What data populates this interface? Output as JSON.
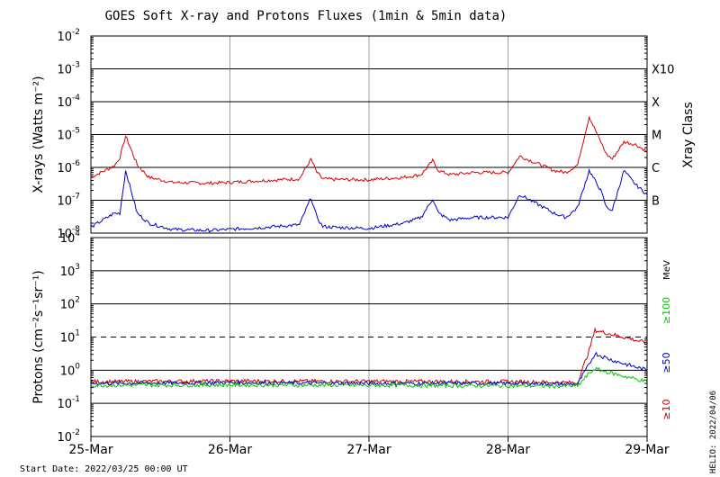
{
  "chart_data": {
    "type": "line",
    "title": "GOES Soft X-ray and Protons Fluxes   (1min & 5min data)",
    "x_ticks": [
      "25-Mar",
      "26-Mar",
      "27-Mar",
      "28-Mar",
      "29-Mar"
    ],
    "xlim": [
      "2022-03-25 00:00",
      "2022-03-29 00:00"
    ],
    "start_label": "Start Date: 2022/03/25 00:00 UT",
    "side_label": "HELIO: 2022/04/06",
    "grid": true,
    "panels": [
      {
        "id": "xray",
        "ylabel": "X-rays (Watts m⁻²)",
        "yscale": "log",
        "ylim": [
          1e-08,
          0.01
        ],
        "y_ticks": [
          {
            "base": "10",
            "exp": "-8"
          },
          {
            "base": "10",
            "exp": "-7"
          },
          {
            "base": "10",
            "exp": "-6"
          },
          {
            "base": "10",
            "exp": "-5"
          },
          {
            "base": "10",
            "exp": "-4"
          },
          {
            "base": "10",
            "exp": "-3"
          },
          {
            "base": "10",
            "exp": "-2"
          }
        ],
        "right_axis_title": "Xray Class",
        "class_labels": [
          "B",
          "C",
          "M",
          "X",
          "X10"
        ],
        "series": [
          {
            "color": "#d80000",
            "x": [
              "2022-03-25 00:00",
              "2022-03-25 04:00",
              "2022-03-25 05:00",
              "2022-03-25 06:00",
              "2022-03-25 08:00",
              "2022-03-25 10:00",
              "2022-03-25 14:00",
              "2022-03-25 20:00",
              "2022-03-26 00:00",
              "2022-03-26 06:00",
              "2022-03-26 12:00",
              "2022-03-26 14:00",
              "2022-03-26 15:00",
              "2022-03-26 16:00",
              "2022-03-26 18:00",
              "2022-03-27 00:00",
              "2022-03-27 06:00",
              "2022-03-27 09:00",
              "2022-03-27 11:00",
              "2022-03-27 12:00",
              "2022-03-27 14:00",
              "2022-03-27 18:00",
              "2022-03-28 00:00",
              "2022-03-28 02:00",
              "2022-03-28 08:00",
              "2022-03-28 10:00",
              "2022-03-28 12:00",
              "2022-03-28 14:00",
              "2022-03-28 16:00",
              "2022-03-28 17:00",
              "2022-03-28 18:00",
              "2022-03-28 20:00",
              "2022-03-28 22:00",
              "2022-03-29 00:00"
            ],
            "values": [
              5e-07,
              1.1e-06,
              2e-06,
              9e-06,
              1.2e-06,
              5e-07,
              3.5e-07,
              3.3e-07,
              3.5e-07,
              4e-07,
              4.5e-07,
              1.8e-06,
              7e-07,
              4.5e-07,
              4.3e-07,
              4.2e-07,
              5e-07,
              6e-07,
              1.6e-06,
              8e-07,
              6e-07,
              7e-07,
              7e-07,
              2.2e-06,
              8e-07,
              7e-07,
              1.2e-06,
              3.5e-05,
              6e-06,
              2.5e-06,
              1.8e-06,
              6e-06,
              5e-06,
              3e-06
            ]
          },
          {
            "color": "#0000c8",
            "x": [
              "2022-03-25 00:00",
              "2022-03-25 04:00",
              "2022-03-25 05:00",
              "2022-03-25 06:00",
              "2022-03-25 08:00",
              "2022-03-25 10:00",
              "2022-03-25 14:00",
              "2022-03-25 20:00",
              "2022-03-26 00:00",
              "2022-03-26 06:00",
              "2022-03-26 12:00",
              "2022-03-26 14:00",
              "2022-03-26 15:00",
              "2022-03-26 16:00",
              "2022-03-26 18:00",
              "2022-03-27 00:00",
              "2022-03-27 06:00",
              "2022-03-27 09:00",
              "2022-03-27 11:00",
              "2022-03-27 12:00",
              "2022-03-27 14:00",
              "2022-03-27 18:00",
              "2022-03-28 00:00",
              "2022-03-28 02:00",
              "2022-03-28 08:00",
              "2022-03-28 10:00",
              "2022-03-28 12:00",
              "2022-03-28 14:00",
              "2022-03-28 16:00",
              "2022-03-28 17:00",
              "2022-03-28 18:00",
              "2022-03-28 20:00",
              "2022-03-28 22:00",
              "2022-03-29 00:00"
            ],
            "values": [
              1.5e-08,
              4e-08,
              4e-08,
              8e-07,
              4e-08,
              2e-08,
              1.3e-08,
              1.2e-08,
              1.3e-08,
              1.5e-08,
              1.8e-08,
              1.2e-07,
              3e-08,
              1.6e-08,
              1.5e-08,
              1.4e-08,
              2e-08,
              3e-08,
              1.1e-07,
              4e-08,
              2.5e-08,
              3e-08,
              3e-08,
              1.5e-07,
              4e-08,
              3e-08,
              6e-08,
              8e-07,
              2e-07,
              6e-08,
              5e-08,
              8e-07,
              3e-07,
              1.5e-07
            ]
          }
        ]
      },
      {
        "id": "protons",
        "ylabel": "Protons (cm⁻²s⁻¹sr⁻¹)",
        "yscale": "log",
        "ylim": [
          0.01,
          10000
        ],
        "y_ticks": [
          {
            "base": "10",
            "exp": "-2"
          },
          {
            "base": "10",
            "exp": "-1"
          },
          {
            "base": "10",
            "exp": "0"
          },
          {
            "base": "10",
            "exp": "1"
          },
          {
            "base": "10",
            "exp": "2"
          },
          {
            "base": "10",
            "exp": "3"
          },
          {
            "base": "10",
            "exp": "4"
          }
        ],
        "threshold": 10,
        "right_unit": "MeV",
        "series": [
          {
            "name": "≥10",
            "color": "#c80000",
            "x": [
              "2022-03-25 00:00",
              "2022-03-26 00:00",
              "2022-03-27 00:00",
              "2022-03-28 00:00",
              "2022-03-28 12:00",
              "2022-03-28 14:00",
              "2022-03-28 15:00",
              "2022-03-28 18:00",
              "2022-03-28 21:00",
              "2022-03-29 00:00"
            ],
            "values": [
              0.45,
              0.47,
              0.46,
              0.45,
              0.42,
              4,
              16,
              12,
              9,
              6.5
            ]
          },
          {
            "name": "≥50",
            "color": "#0000c8",
            "x": [
              "2022-03-25 00:00",
              "2022-03-26 00:00",
              "2022-03-27 00:00",
              "2022-03-28 00:00",
              "2022-03-28 12:00",
              "2022-03-28 14:00",
              "2022-03-28 15:00",
              "2022-03-28 18:00",
              "2022-03-28 21:00",
              "2022-03-29 00:00"
            ],
            "values": [
              0.4,
              0.42,
              0.4,
              0.4,
              0.38,
              1.5,
              3.2,
              2,
              1.4,
              1
            ]
          },
          {
            "name": "≥100",
            "color": "#00c800",
            "x": [
              "2022-03-25 00:00",
              "2022-03-26 00:00",
              "2022-03-27 00:00",
              "2022-03-28 00:00",
              "2022-03-28 12:00",
              "2022-03-28 14:00",
              "2022-03-28 15:00",
              "2022-03-28 18:00",
              "2022-03-28 21:00",
              "2022-03-29 00:00"
            ],
            "values": [
              0.35,
              0.36,
              0.35,
              0.34,
              0.33,
              0.8,
              1.1,
              0.8,
              0.6,
              0.45
            ]
          }
        ]
      }
    ]
  }
}
